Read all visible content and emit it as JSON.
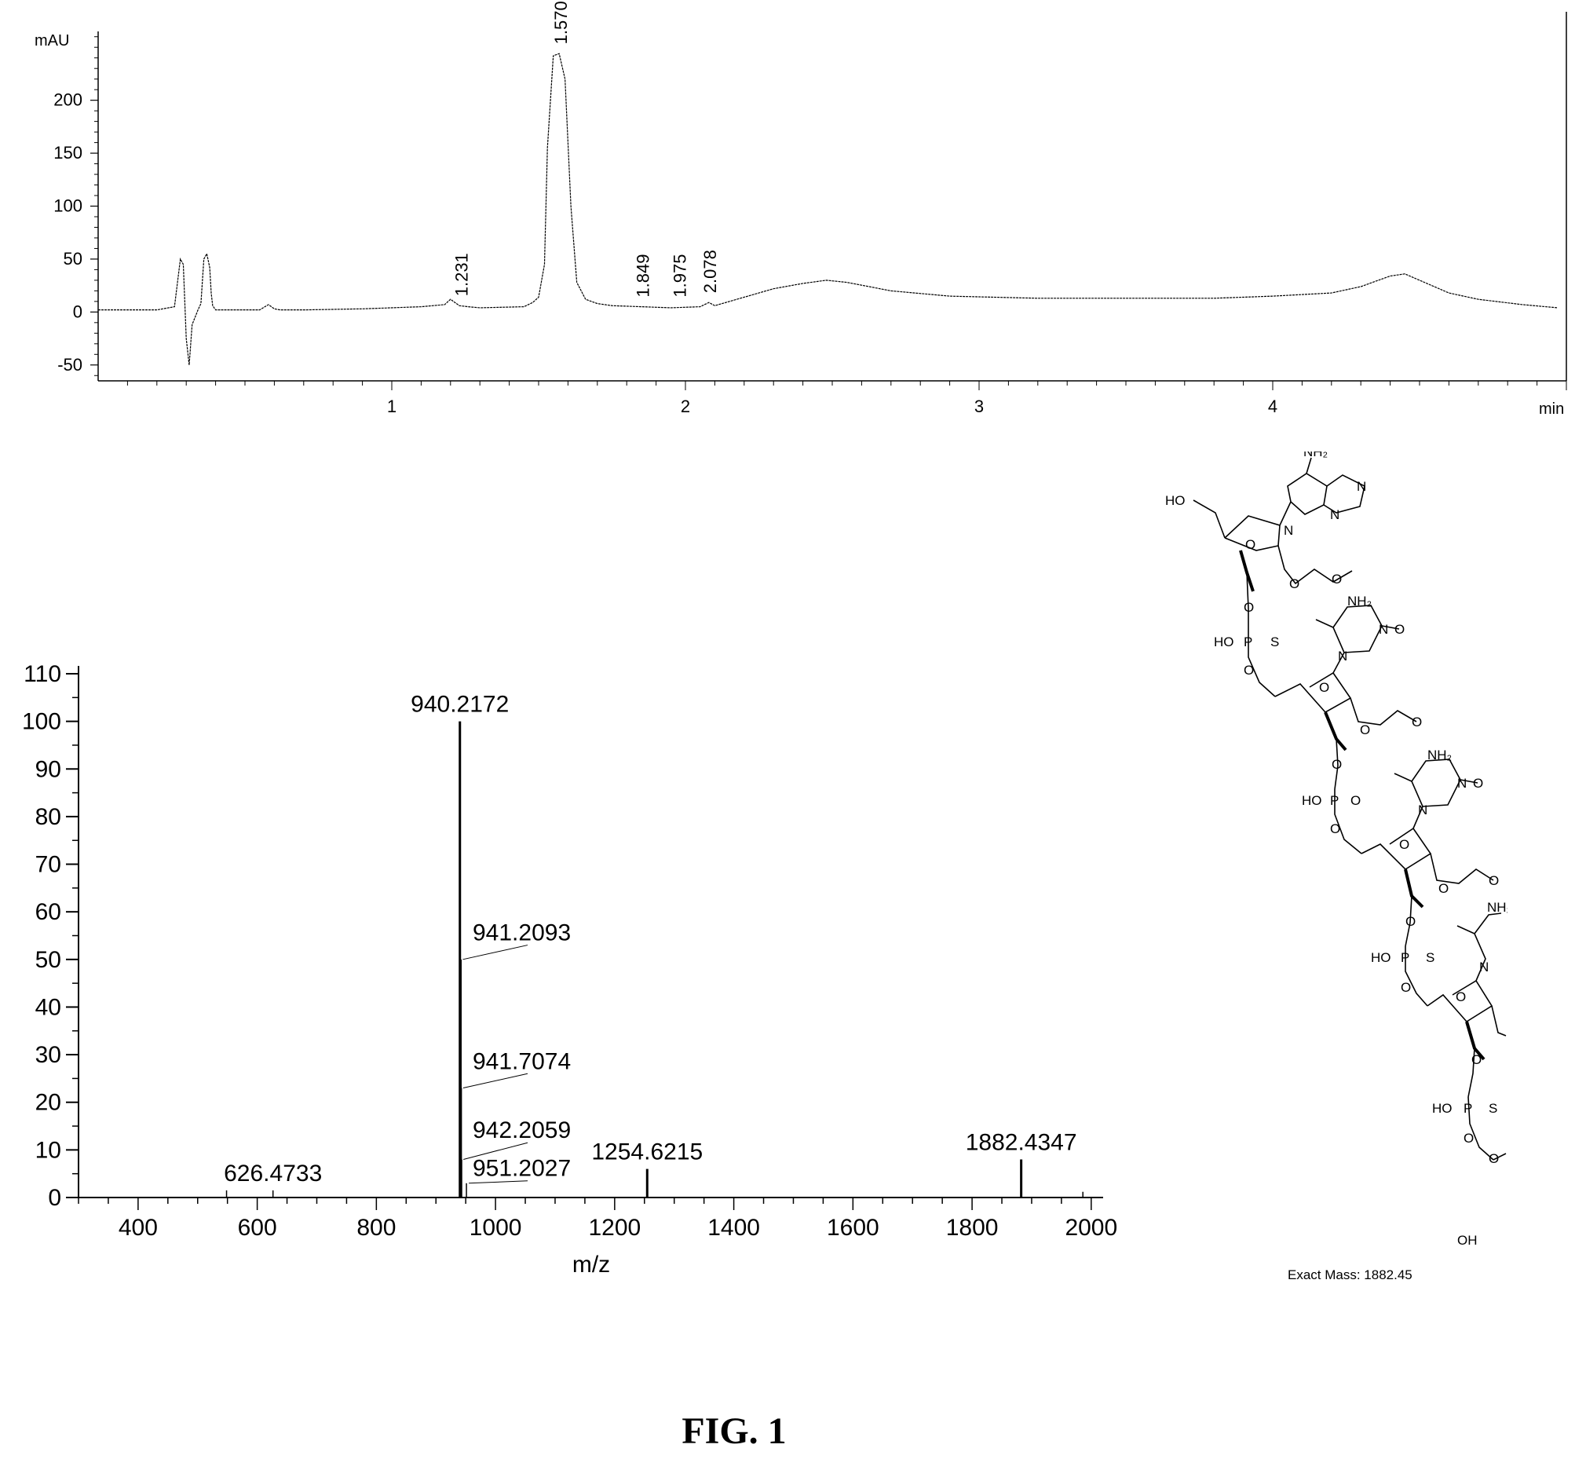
{
  "figure_label": "FIG. 1",
  "chart_data": [
    {
      "type": "line",
      "name": "hplc_chromatogram",
      "ylabel": "mAU",
      "xunit_label": "min",
      "xlim": [
        0,
        5.0
      ],
      "ylim": [
        -65,
        265
      ],
      "x_ticks": [
        1,
        2,
        3,
        4
      ],
      "y_ticks": [
        -50,
        0,
        50,
        100,
        150,
        200
      ],
      "series": [
        {
          "x": [
            0.0,
            0.2,
            0.26,
            0.28,
            0.29,
            0.3,
            0.31,
            0.32,
            0.34,
            0.35,
            0.36,
            0.37,
            0.38,
            0.385,
            0.39,
            0.4,
            0.42,
            0.45,
            0.55,
            0.58,
            0.6,
            0.62,
            0.7,
            0.9,
            1.1,
            1.18,
            1.2,
            1.23,
            1.26,
            1.3,
            1.45,
            1.48,
            1.5,
            1.52,
            1.53,
            1.55,
            1.57,
            1.59,
            1.61,
            1.63,
            1.66,
            1.7,
            1.75,
            1.85,
            1.95,
            2.05,
            2.08,
            2.1,
            2.2,
            2.3,
            2.4,
            2.48,
            2.55,
            2.7,
            2.9,
            3.2,
            3.5,
            3.8,
            4.0,
            4.2,
            4.3,
            4.4,
            4.45,
            4.5,
            4.6,
            4.7,
            4.85,
            4.97
          ],
          "y": [
            2,
            2,
            5,
            50,
            45,
            -25,
            -50,
            -12,
            2,
            8,
            50,
            55,
            42,
            18,
            6,
            2,
            2,
            2,
            2,
            7,
            3,
            2,
            2,
            3,
            5,
            7,
            12,
            6,
            5,
            4,
            5,
            9,
            14,
            45,
            155,
            242,
            244,
            220,
            100,
            28,
            12,
            8,
            6,
            5,
            4,
            5,
            9,
            6,
            14,
            22,
            27,
            30,
            28,
            20,
            15,
            13,
            13,
            13,
            15,
            18,
            24,
            34,
            36,
            30,
            18,
            12,
            7,
            4
          ]
        }
      ],
      "peak_labels": [
        {
          "x": 1.231,
          "label": "1.231"
        },
        {
          "x": 1.57,
          "label": "1.570"
        },
        {
          "x": 1.849,
          "label": "1.849"
        },
        {
          "x": 1.975,
          "label": "1.975"
        },
        {
          "x": 2.078,
          "label": "2.078"
        }
      ]
    },
    {
      "type": "bar",
      "name": "mass_spectrum",
      "xlabel": "m/z",
      "xlim": [
        300,
        2020
      ],
      "ylim": [
        0,
        110
      ],
      "x_ticks": [
        400,
        600,
        800,
        1000,
        1200,
        1400,
        1600,
        1800,
        2000
      ],
      "y_ticks": [
        0,
        10,
        20,
        30,
        40,
        50,
        60,
        70,
        80,
        90,
        100,
        110
      ],
      "peaks": [
        {
          "mz": 548.5,
          "intensity": 1.5
        },
        {
          "mz": 626.4733,
          "intensity": 1.5
        },
        {
          "mz": 940.2172,
          "intensity": 100
        },
        {
          "mz": 941.2093,
          "intensity": 50
        },
        {
          "mz": 941.7074,
          "intensity": 23
        },
        {
          "mz": 942.2059,
          "intensity": 8
        },
        {
          "mz": 951.2027,
          "intensity": 3
        },
        {
          "mz": 1254.6215,
          "intensity": 6
        },
        {
          "mz": 1882.4347,
          "intensity": 8
        },
        {
          "mz": 1986,
          "intensity": 1.2
        }
      ],
      "labels": [
        {
          "text": "940.2172",
          "mz": 940.2172,
          "intensity": 100,
          "position": "top"
        },
        {
          "text": "941.2093",
          "mz": 941.2093,
          "intensity": 50,
          "position": "right"
        },
        {
          "text": "941.7074",
          "mz": 941.7074,
          "intensity": 23,
          "position": "right"
        },
        {
          "text": "942.2059",
          "mz": 942.2059,
          "intensity": 8,
          "position": "right"
        },
        {
          "text": "951.2027",
          "mz": 951.2027,
          "intensity": 3,
          "position": "right"
        },
        {
          "text": "626.4733",
          "mz": 626.4733,
          "intensity": 1.5,
          "position": "top"
        },
        {
          "text": "1254.6215",
          "mz": 1254.6215,
          "intensity": 6,
          "position": "top"
        },
        {
          "text": "1882.4347",
          "mz": 1882.4347,
          "intensity": 8,
          "position": "top"
        }
      ]
    }
  ],
  "structure": {
    "nh2": "NH₂",
    "ho": "HO",
    "oh": "OH",
    "o": "O",
    "n": "N",
    "nh": "NH",
    "p": "P",
    "s": "S",
    "exact_mass": "Exact Mass: 1882.45"
  }
}
